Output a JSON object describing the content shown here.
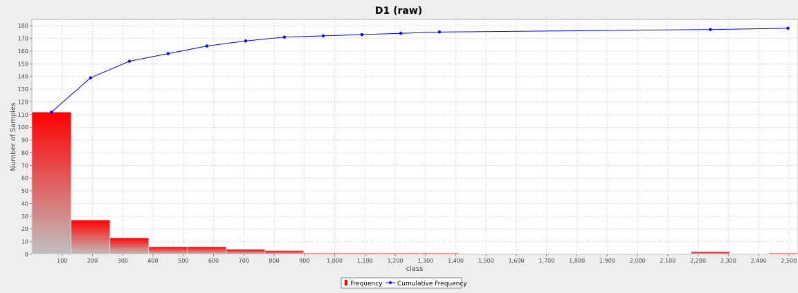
{
  "chart_data": {
    "type": "bar",
    "title": "D1 (raw)",
    "xlabel": "class",
    "ylabel": "Number of Samples",
    "xlim": [
      0,
      2530
    ],
    "ylim": [
      0,
      185
    ],
    "x_ticks": [
      "100",
      "200",
      "300",
      "400",
      "500",
      "600",
      "700",
      "800",
      "900",
      "1,000",
      "1,100",
      "1,200",
      "1,300",
      "1,400",
      "1,500",
      "1,600",
      "1,700",
      "1,800",
      "1,900",
      "2,000",
      "2,100",
      "2,200",
      "2,300",
      "2,400",
      "2,500"
    ],
    "y_ticks": [
      "0",
      "10",
      "20",
      "30",
      "40",
      "50",
      "60",
      "70",
      "80",
      "90",
      "100",
      "110",
      "120",
      "130",
      "140",
      "150",
      "160",
      "170",
      "180"
    ],
    "grid": true,
    "legend_position": "bottom-center",
    "series": [
      {
        "name": "Frequency",
        "type": "bar",
        "color": "#ff0000",
        "bins": [
          {
            "start": 0,
            "end": 130,
            "value": 112
          },
          {
            "start": 130,
            "end": 258,
            "value": 27
          },
          {
            "start": 258,
            "end": 386,
            "value": 13
          },
          {
            "start": 386,
            "end": 514,
            "value": 6
          },
          {
            "start": 514,
            "end": 642,
            "value": 6
          },
          {
            "start": 642,
            "end": 770,
            "value": 4
          },
          {
            "start": 770,
            "end": 898,
            "value": 3
          },
          {
            "start": 898,
            "end": 1026,
            "value": 1
          },
          {
            "start": 1026,
            "end": 1154,
            "value": 1
          },
          {
            "start": 1154,
            "end": 1282,
            "value": 1
          },
          {
            "start": 1282,
            "end": 1410,
            "value": 1
          },
          {
            "start": 2177,
            "end": 2305,
            "value": 2
          },
          {
            "start": 2433,
            "end": 2561,
            "value": 1
          }
        ]
      },
      {
        "name": "Cumulative Frequency",
        "type": "line",
        "color": "#0000ff",
        "points": [
          {
            "x": 65,
            "y": 112
          },
          {
            "x": 194,
            "y": 139
          },
          {
            "x": 322,
            "y": 152
          },
          {
            "x": 450,
            "y": 158
          },
          {
            "x": 578,
            "y": 164
          },
          {
            "x": 706,
            "y": 168
          },
          {
            "x": 834,
            "y": 171
          },
          {
            "x": 962,
            "y": 172
          },
          {
            "x": 1090,
            "y": 173
          },
          {
            "x": 1218,
            "y": 174
          },
          {
            "x": 1346,
            "y": 175
          },
          {
            "x": 2241,
            "y": 177
          },
          {
            "x": 2497,
            "y": 178
          }
        ]
      }
    ]
  }
}
